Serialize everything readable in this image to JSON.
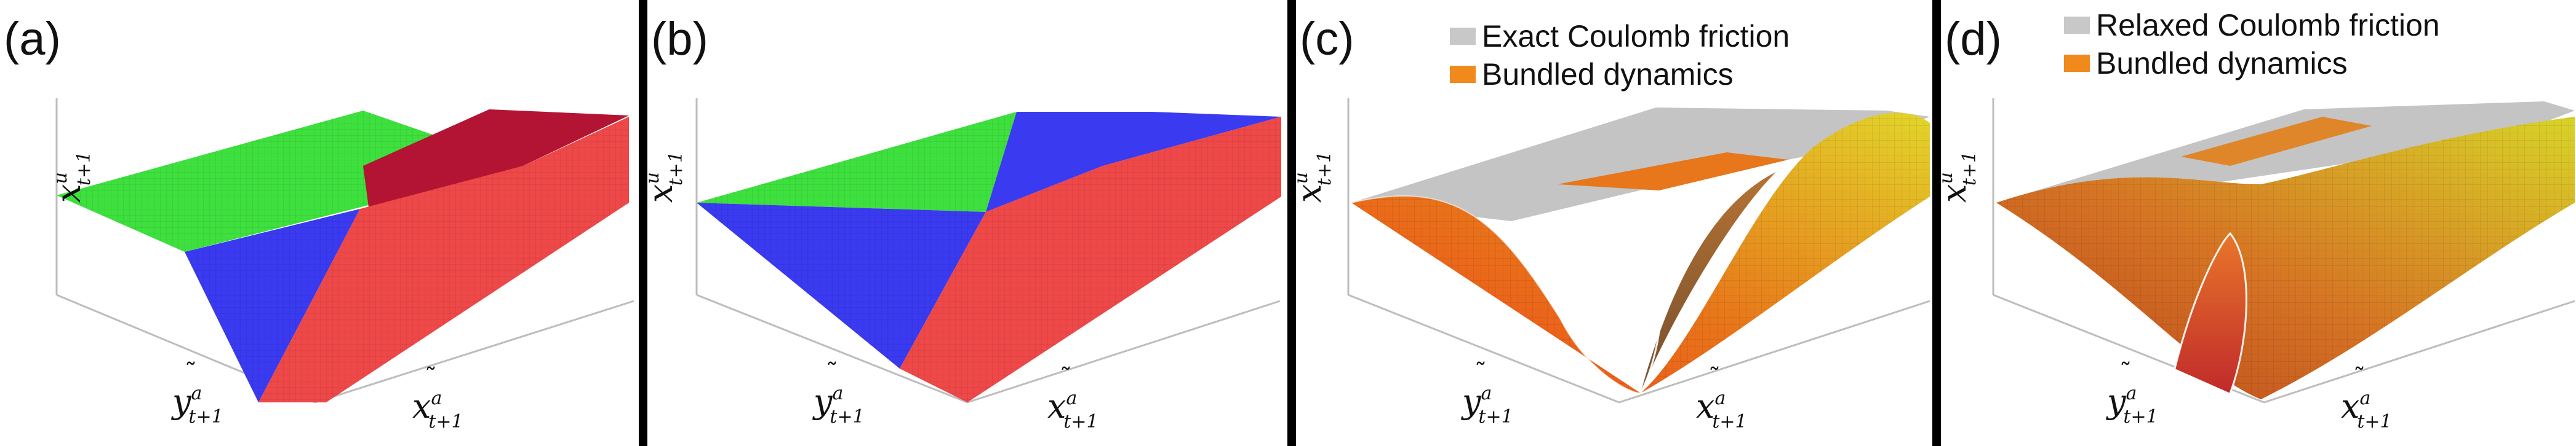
{
  "figure": {
    "panels": [
      {
        "id": "a",
        "label": "(a)",
        "legend": [],
        "axes": {
          "z": [
            "x",
            "u",
            "t+1"
          ],
          "y": [
            "y",
            "a",
            "t+1"
          ],
          "x": [
            "x",
            "a",
            "t+1"
          ]
        }
      },
      {
        "id": "b",
        "label": "(b)",
        "legend": [],
        "axes": {
          "z": [
            "x",
            "u",
            "t+1"
          ],
          "y": [
            "y",
            "a",
            "t+1"
          ],
          "x": [
            "x",
            "a",
            "t+1"
          ]
        }
      },
      {
        "id": "c",
        "label": "(c)",
        "legend": [
          {
            "text": "Exact Coulomb friction",
            "color": "#c8c8c8"
          },
          {
            "text": "Bundled dynamics",
            "color": "#f08a1c"
          }
        ],
        "axes": {
          "z": [
            "x",
            "u",
            "t+1"
          ],
          "y": [
            "y",
            "a",
            "t+1"
          ],
          "x": [
            "x",
            "a",
            "t+1"
          ]
        }
      },
      {
        "id": "d",
        "label": "(d)",
        "legend": [
          {
            "text": "Relaxed Coulomb friction",
            "color": "#c8c8c8"
          },
          {
            "text": "Bundled dynamics",
            "color": "#f08a1c"
          }
        ],
        "axes": {
          "z": [
            "x",
            "u",
            "t+1"
          ],
          "y": [
            "y",
            "a",
            "t+1"
          ],
          "x": [
            "x",
            "a",
            "t+1"
          ]
        }
      }
    ],
    "colors": {
      "green": "#3ee03e",
      "blue": "#3a3af0",
      "red": "#ee4848",
      "dark_red": "#b41434",
      "gray": "#c4c4c4",
      "orange": "#e8761a",
      "yellow": "#e2d62a",
      "orange_red": "#f0441a"
    }
  }
}
